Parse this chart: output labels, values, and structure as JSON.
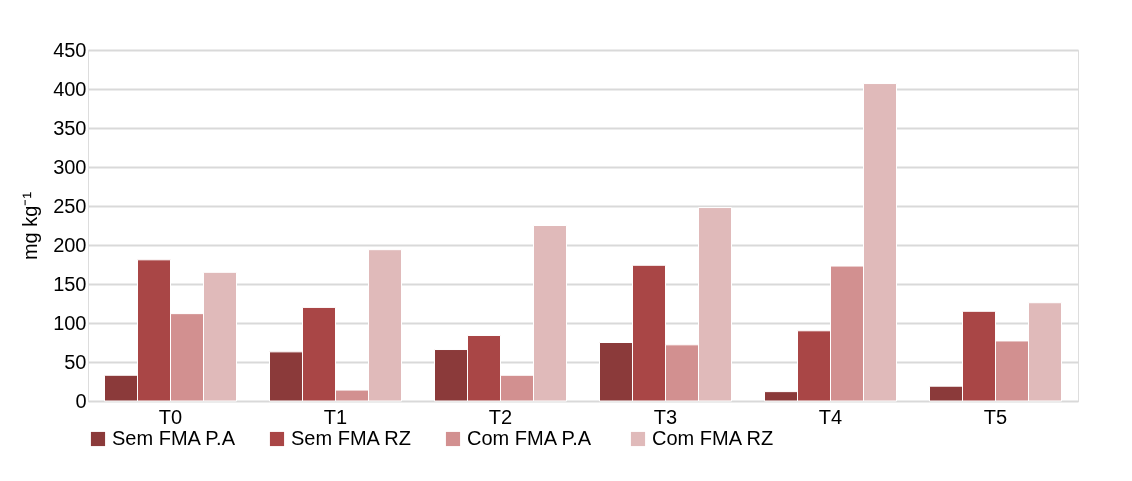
{
  "chart_data": {
    "type": "bar",
    "ylabel": "mg kg⁻¹",
    "categories": [
      "T0",
      "T1",
      "T2",
      "T3",
      "T4",
      "T5"
    ],
    "series": [
      {
        "name": "Sem FMA P.A",
        "color": "#8b3a3a",
        "values": [
          33,
          63,
          66,
          75,
          12,
          19
        ]
      },
      {
        "name": "Sem FMA RZ",
        "color": "#a94646",
        "values": [
          181,
          120,
          84,
          174,
          90,
          115
        ]
      },
      {
        "name": "Com FMA  P.A",
        "color": "#d29090",
        "values": [
          112,
          14,
          33,
          72,
          173,
          77
        ]
      },
      {
        "name": "Com FMA  RZ",
        "color": "#e0baba",
        "values": [
          165,
          194,
          225,
          248,
          407,
          126
        ]
      }
    ],
    "ylim": [
      0,
      450
    ],
    "yticks": [
      0,
      50,
      100,
      150,
      200,
      250,
      300,
      350,
      400,
      450
    ],
    "grid": "y",
    "legend": "bottom"
  }
}
